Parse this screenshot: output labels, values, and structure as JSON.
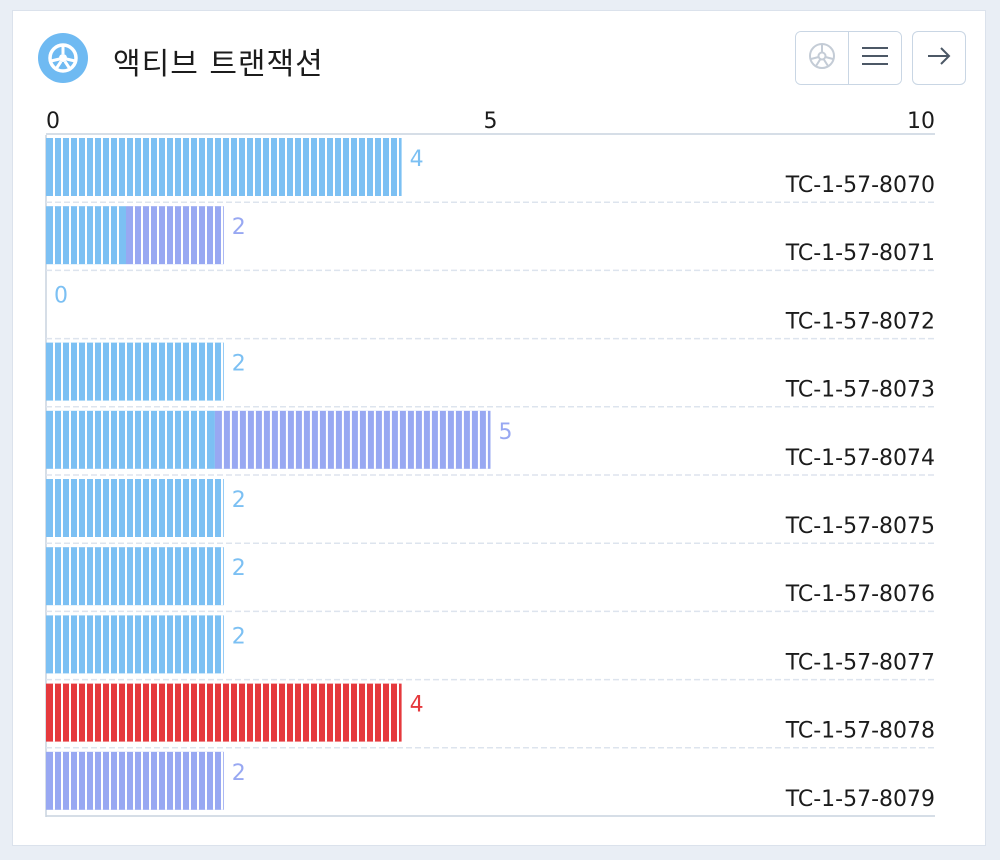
{
  "header": {
    "title": "액티브 트랜잭션",
    "logo_icon": "wheel-icon",
    "buttons": [
      {
        "name": "wheel-view-button",
        "icon": "wheel-outline-icon"
      },
      {
        "name": "list-view-button",
        "icon": "menu-icon"
      },
      {
        "name": "go-button",
        "icon": "arrow-right-icon"
      }
    ]
  },
  "colors": {
    "accent": "#6fbaf2",
    "sky": "#7cc0f3",
    "periwinkle": "#98a8f2",
    "red": "#e5393d",
    "grid": "#dde4ee",
    "axis": "#c9d3df"
  },
  "chart_data": {
    "type": "bar",
    "orientation": "horizontal",
    "stacked": true,
    "xlim": [
      0,
      10
    ],
    "x_ticks": [
      "0",
      "5",
      "10"
    ],
    "categories": [
      "TC-1-57-8070",
      "TC-1-57-8071",
      "TC-1-57-8072",
      "TC-1-57-8073",
      "TC-1-57-8074",
      "TC-1-57-8075",
      "TC-1-57-8076",
      "TC-1-57-8077",
      "TC-1-57-8078",
      "TC-1-57-8079"
    ],
    "series": [
      {
        "color": "#7cc0f3",
        "values": [
          4,
          0.9,
          0,
          2,
          1.9,
          2,
          2,
          2,
          0,
          0
        ]
      },
      {
        "color": "#98a8f2",
        "values": [
          0,
          1.1,
          0,
          0,
          3.1,
          0,
          0,
          0,
          0,
          2
        ]
      },
      {
        "color": "#e5393d",
        "values": [
          0,
          0,
          0,
          0,
          0,
          0,
          0,
          0,
          4,
          0
        ]
      }
    ],
    "data_labels": [
      "4",
      "2",
      "0",
      "2",
      "5",
      "2",
      "2",
      "2",
      "4",
      "2"
    ],
    "label_colors": [
      "#7cc0f3",
      "#98a8f2",
      "#7cc0f3",
      "#7cc0f3",
      "#98a8f2",
      "#7cc0f3",
      "#7cc0f3",
      "#7cc0f3",
      "#e5393d",
      "#98a8f2"
    ]
  }
}
